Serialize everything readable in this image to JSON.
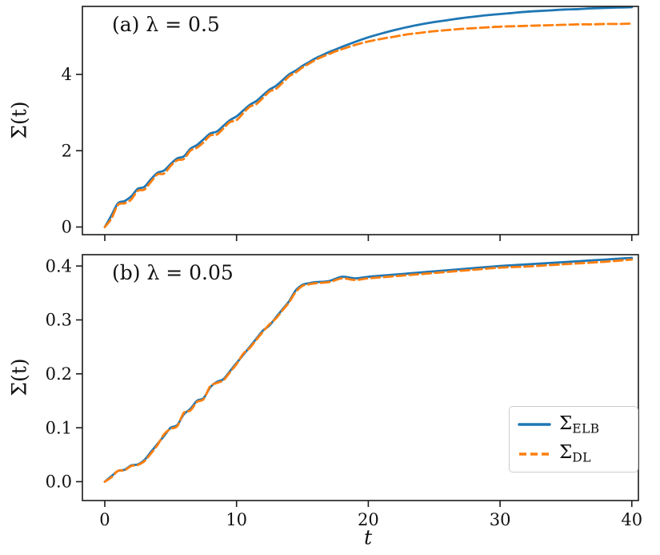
{
  "figure": {
    "xlabel": "t",
    "background": "#ffffff",
    "spine_color": "#1a1a1a"
  },
  "legend": {
    "position": "lower right",
    "entries": [
      {
        "symbol": "Σ",
        "subscript": "ELB",
        "line_style": "solid",
        "color": "#1f77b4"
      },
      {
        "symbol": "Σ",
        "subscript": "DL",
        "line_style": "dashed",
        "color": "#ff7f0e"
      }
    ]
  },
  "chart_data": [
    {
      "type": "line",
      "panel": "a",
      "title": "(a) λ = 0.5",
      "ylabel": "Σ(t)",
      "xlabel": "",
      "xlim": [
        -1.7,
        40.5
      ],
      "ylim": [
        -0.2,
        5.78
      ],
      "xticks": [
        0,
        10,
        20,
        30,
        40
      ],
      "xtick_labels": [
        "0",
        "10",
        "20",
        "30",
        "40"
      ],
      "show_xtick_labels": false,
      "yticks": [
        0,
        2,
        4
      ],
      "ytick_labels": [
        "0",
        "2",
        "4"
      ],
      "grid": false,
      "series": [
        {
          "name": "Σ_ELB",
          "style": "solid",
          "color": "#1f77b4",
          "points": [
            [
              0,
              0
            ],
            [
              0.5,
              0.3
            ],
            [
              1,
              0.62
            ],
            [
              1.5,
              0.68
            ],
            [
              2,
              0.8
            ],
            [
              2.5,
              1.0
            ],
            [
              3,
              1.05
            ],
            [
              3.5,
              1.25
            ],
            [
              4,
              1.42
            ],
            [
              4.5,
              1.48
            ],
            [
              5,
              1.65
            ],
            [
              5.5,
              1.8
            ],
            [
              6,
              1.85
            ],
            [
              6.5,
              2.05
            ],
            [
              7,
              2.15
            ],
            [
              7.5,
              2.3
            ],
            [
              8,
              2.45
            ],
            [
              8.5,
              2.5
            ],
            [
              9,
              2.65
            ],
            [
              9.5,
              2.8
            ],
            [
              10,
              2.9
            ],
            [
              10.5,
              3.05
            ],
            [
              11,
              3.2
            ],
            [
              11.5,
              3.3
            ],
            [
              12,
              3.45
            ],
            [
              12.5,
              3.6
            ],
            [
              13,
              3.7
            ],
            [
              13.5,
              3.85
            ],
            [
              14,
              4.0
            ],
            [
              14.5,
              4.1
            ],
            [
              15,
              4.22
            ],
            [
              15.5,
              4.32
            ],
            [
              16,
              4.42
            ],
            [
              16.5,
              4.5
            ],
            [
              17,
              4.58
            ],
            [
              17.5,
              4.65
            ],
            [
              18,
              4.72
            ],
            [
              19,
              4.85
            ],
            [
              20,
              4.97
            ],
            [
              21,
              5.07
            ],
            [
              22,
              5.16
            ],
            [
              23,
              5.24
            ],
            [
              24,
              5.31
            ],
            [
              25,
              5.37
            ],
            [
              26,
              5.42
            ],
            [
              27,
              5.47
            ],
            [
              28,
              5.51
            ],
            [
              29,
              5.55
            ],
            [
              30,
              5.58
            ],
            [
              31,
              5.61
            ],
            [
              32,
              5.64
            ],
            [
              33,
              5.66
            ],
            [
              34,
              5.68
            ],
            [
              35,
              5.7
            ],
            [
              36,
              5.71
            ],
            [
              37,
              5.73
            ],
            [
              38,
              5.74
            ],
            [
              39,
              5.75
            ],
            [
              40,
              5.76
            ]
          ]
        },
        {
          "name": "Σ_DL",
          "style": "dashed",
          "color": "#ff7f0e",
          "points": [
            [
              0,
              0
            ],
            [
              0.5,
              0.22
            ],
            [
              1,
              0.58
            ],
            [
              1.5,
              0.62
            ],
            [
              2,
              0.72
            ],
            [
              2.5,
              0.95
            ],
            [
              3,
              0.98
            ],
            [
              3.5,
              1.18
            ],
            [
              4,
              1.38
            ],
            [
              4.5,
              1.4
            ],
            [
              5,
              1.6
            ],
            [
              5.5,
              1.75
            ],
            [
              6,
              1.78
            ],
            [
              6.5,
              2.0
            ],
            [
              7,
              2.08
            ],
            [
              7.5,
              2.22
            ],
            [
              8,
              2.4
            ],
            [
              8.5,
              2.42
            ],
            [
              9,
              2.58
            ],
            [
              9.5,
              2.75
            ],
            [
              10,
              2.8
            ],
            [
              10.5,
              2.98
            ],
            [
              11,
              3.15
            ],
            [
              11.5,
              3.22
            ],
            [
              12,
              3.38
            ],
            [
              12.5,
              3.55
            ],
            [
              13,
              3.62
            ],
            [
              13.5,
              3.78
            ],
            [
              14,
              3.95
            ],
            [
              14.5,
              4.05
            ],
            [
              15,
              4.18
            ],
            [
              15.5,
              4.28
            ],
            [
              16,
              4.38
            ],
            [
              16.5,
              4.46
            ],
            [
              17,
              4.53
            ],
            [
              17.5,
              4.6
            ],
            [
              18,
              4.66
            ],
            [
              19,
              4.77
            ],
            [
              20,
              4.86
            ],
            [
              21,
              4.93
            ],
            [
              22,
              4.99
            ],
            [
              23,
              5.05
            ],
            [
              24,
              5.09
            ],
            [
              25,
              5.13
            ],
            [
              26,
              5.16
            ],
            [
              27,
              5.19
            ],
            [
              28,
              5.21
            ],
            [
              29,
              5.23
            ],
            [
              30,
              5.25
            ],
            [
              31,
              5.26
            ],
            [
              32,
              5.27
            ],
            [
              33,
              5.28
            ],
            [
              34,
              5.29
            ],
            [
              35,
              5.3
            ],
            [
              36,
              5.31
            ],
            [
              37,
              5.31
            ],
            [
              38,
              5.32
            ],
            [
              39,
              5.32
            ],
            [
              40,
              5.33
            ]
          ]
        }
      ]
    },
    {
      "type": "line",
      "panel": "b",
      "title": "(b) λ = 0.05",
      "ylabel": "Σ(t)",
      "xlabel": "t",
      "xlim": [
        -1.7,
        40.5
      ],
      "ylim": [
        -0.035,
        0.421
      ],
      "xticks": [
        0,
        10,
        20,
        30,
        40
      ],
      "xtick_labels": [
        "0",
        "10",
        "20",
        "30",
        "40"
      ],
      "show_xtick_labels": true,
      "yticks": [
        0,
        0.1,
        0.2,
        0.3,
        0.4
      ],
      "ytick_labels": [
        "0.0",
        "0.1",
        "0.2",
        "0.3",
        "0.4"
      ],
      "grid": false,
      "series": [
        {
          "name": "Σ_ELB",
          "style": "solid",
          "color": "#1f77b4",
          "points": [
            [
              0,
              0
            ],
            [
              0.5,
              0.01
            ],
            [
              1,
              0.02
            ],
            [
              1.5,
              0.022
            ],
            [
              2,
              0.03
            ],
            [
              2.5,
              0.032
            ],
            [
              3,
              0.04
            ],
            [
              3.5,
              0.055
            ],
            [
              4,
              0.07
            ],
            [
              4.5,
              0.085
            ],
            [
              5,
              0.1
            ],
            [
              5.5,
              0.105
            ],
            [
              6,
              0.125
            ],
            [
              6.5,
              0.135
            ],
            [
              7,
              0.15
            ],
            [
              7.5,
              0.155
            ],
            [
              8,
              0.175
            ],
            [
              8.5,
              0.185
            ],
            [
              9,
              0.19
            ],
            [
              9.5,
              0.205
            ],
            [
              10,
              0.22
            ],
            [
              10.5,
              0.235
            ],
            [
              11,
              0.25
            ],
            [
              11.5,
              0.265
            ],
            [
              12,
              0.28
            ],
            [
              12.5,
              0.29
            ],
            [
              13,
              0.305
            ],
            [
              13.5,
              0.32
            ],
            [
              14,
              0.335
            ],
            [
              14.5,
              0.355
            ],
            [
              15,
              0.365
            ],
            [
              15.5,
              0.368
            ],
            [
              16,
              0.37
            ],
            [
              17,
              0.372
            ],
            [
              18,
              0.38
            ],
            [
              19,
              0.377
            ],
            [
              20,
              0.38
            ],
            [
              22,
              0.384
            ],
            [
              24,
              0.388
            ],
            [
              26,
              0.392
            ],
            [
              28,
              0.396
            ],
            [
              30,
              0.4
            ],
            [
              32,
              0.403
            ],
            [
              34,
              0.406
            ],
            [
              36,
              0.409
            ],
            [
              38,
              0.412
            ],
            [
              40,
              0.415
            ]
          ]
        },
        {
          "name": "Σ_DL",
          "style": "dashed",
          "color": "#ff7f0e",
          "points": [
            [
              0,
              0
            ],
            [
              0.5,
              0.008
            ],
            [
              1,
              0.02
            ],
            [
              1.5,
              0.021
            ],
            [
              2,
              0.029
            ],
            [
              2.5,
              0.031
            ],
            [
              3,
              0.038
            ],
            [
              3.5,
              0.052
            ],
            [
              4,
              0.068
            ],
            [
              4.5,
              0.088
            ],
            [
              5,
              0.098
            ],
            [
              5.5,
              0.103
            ],
            [
              6,
              0.128
            ],
            [
              6.5,
              0.132
            ],
            [
              7,
              0.148
            ],
            [
              7.5,
              0.153
            ],
            [
              8,
              0.177
            ],
            [
              8.5,
              0.183
            ],
            [
              9,
              0.188
            ],
            [
              9.5,
              0.203
            ],
            [
              10,
              0.218
            ],
            [
              10.5,
              0.237
            ],
            [
              11,
              0.248
            ],
            [
              11.5,
              0.263
            ],
            [
              12,
              0.278
            ],
            [
              12.5,
              0.292
            ],
            [
              13,
              0.303
            ],
            [
              13.5,
              0.318
            ],
            [
              14,
              0.333
            ],
            [
              14.5,
              0.352
            ],
            [
              15,
              0.363
            ],
            [
              15.5,
              0.366
            ],
            [
              16,
              0.368
            ],
            [
              17,
              0.37
            ],
            [
              18,
              0.377
            ],
            [
              19,
              0.374
            ],
            [
              20,
              0.377
            ],
            [
              22,
              0.381
            ],
            [
              24,
              0.385
            ],
            [
              26,
              0.389
            ],
            [
              28,
              0.393
            ],
            [
              30,
              0.397
            ],
            [
              32,
              0.399
            ],
            [
              34,
              0.402
            ],
            [
              36,
              0.405
            ],
            [
              38,
              0.408
            ],
            [
              40,
              0.412
            ]
          ]
        }
      ]
    }
  ]
}
